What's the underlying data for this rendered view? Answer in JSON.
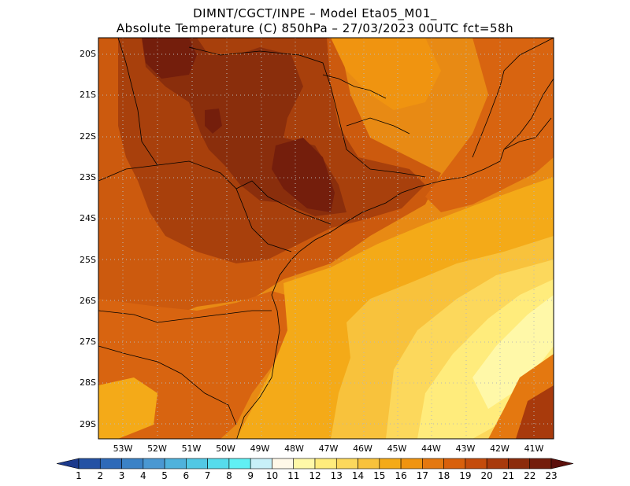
{
  "title": {
    "line1": "DIMNT/CGCT/INPE –  Model Eta05_M01_",
    "line2": "Absolute Temperature (C) 850hPa –  27/03/2023 00UTC fct=58h"
  },
  "lat_labels": [
    "20S",
    "21S",
    "22S",
    "23S",
    "24S",
    "25S",
    "26S",
    "27S",
    "28S",
    "29S"
  ],
  "lon_labels": [
    "53W",
    "52W",
    "51W",
    "50W",
    "49W",
    "48W",
    "47W",
    "46W",
    "45W",
    "44W",
    "43W",
    "42W",
    "41W"
  ],
  "colorbar": {
    "labels": [
      "1",
      "2",
      "3",
      "4",
      "5",
      "6",
      "7",
      "8",
      "9",
      "10",
      "11",
      "12",
      "13",
      "14",
      "15",
      "16",
      "17",
      "18",
      "19",
      "20",
      "21",
      "22",
      "23"
    ],
    "colors": [
      "#1c3a8c",
      "#2452a4",
      "#2e6ab8",
      "#3b82c6",
      "#4a98d2",
      "#4fb2dc",
      "#52c8e4",
      "#56dcec",
      "#60f0f4",
      "#c8f0f8",
      "#fff8e8",
      "#fff8a8",
      "#ffec7c",
      "#fcd85c",
      "#f8c23c",
      "#f4aa18",
      "#f09410",
      "#e47810",
      "#d8600c",
      "#c44c0c",
      "#a83a0c",
      "#8c2c0c",
      "#741e0c",
      "#5c100c"
    ]
  }
}
